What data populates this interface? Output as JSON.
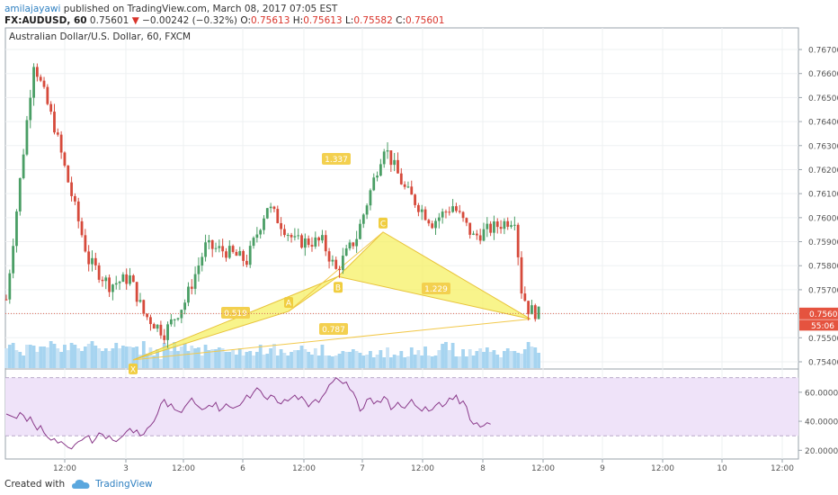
{
  "header": {
    "author": "amilajayawi",
    "published_text": "published on TradingView.com, March 08, 2017 07:05 EST",
    "symbol": "FX:AUDUSD, 60",
    "last_price": "0.75601",
    "change_arrow": "▼",
    "change": "−0.00242 (−0.32%)",
    "o_label": "O:",
    "o_value": "0.75613",
    "h_label": "H:",
    "h_value": "0.75613",
    "l_label": "L:",
    "l_value": "0.75582",
    "c_label": "C:",
    "c_value": "0.75601"
  },
  "footer": {
    "created_with": "Created with",
    "brand": "TradingView"
  },
  "chart_data": {
    "type": "candlestick",
    "title": "Australian Dollar/U.S. Dollar, 60, FXCM",
    "price_axis": {
      "ticks": [
        "0.76700",
        "0.76600",
        "0.76500",
        "0.76400",
        "0.76300",
        "0.76200",
        "0.76100",
        "0.76000",
        "0.75900",
        "0.75800",
        "0.75700",
        "0.75600",
        "0.75500",
        "0.75400"
      ],
      "ylim": [
        0.7537,
        0.7679
      ]
    },
    "current_price_label": "0.75601",
    "countdown_label": "55:06",
    "time_axis": {
      "labels": [
        "12:00",
        "3",
        "12:00",
        "6",
        "12:00",
        "7",
        "12:00",
        "8",
        "12:00",
        "9",
        "12:00",
        "10",
        "12:00"
      ]
    },
    "harmonic_pattern": {
      "points": [
        {
          "label": "X",
          "price": 0.75408
        },
        {
          "label": "A",
          "price": 0.7561
        },
        {
          "label": "B",
          "price": 0.75755
        },
        {
          "label": "C",
          "price": 0.7594
        }
      ],
      "end_price": 0.75578,
      "ratios": [
        "1.337",
        "0.519",
        "1.229",
        "0.787"
      ]
    },
    "rsi": {
      "ticks": [
        "60.0000",
        "40.0000",
        "20.0000"
      ],
      "overbought": 70,
      "oversold": 30,
      "ylim": [
        14,
        76
      ],
      "values": [
        45,
        44,
        43,
        42,
        46,
        44,
        40,
        43,
        38,
        34,
        37,
        32,
        29,
        27,
        28,
        25,
        26,
        24,
        22,
        21,
        24,
        26,
        27,
        29,
        30,
        25,
        28,
        32,
        31,
        28,
        30,
        27,
        26,
        28,
        30,
        33,
        35,
        32,
        34,
        30,
        31,
        35,
        37,
        40,
        45,
        52,
        55,
        50,
        52,
        48,
        47,
        46,
        50,
        53,
        56,
        52,
        50,
        48,
        49,
        51,
        50,
        53,
        47,
        49,
        52,
        50,
        49,
        50,
        51,
        54,
        58,
        56,
        60,
        63,
        61,
        57,
        55,
        58,
        57,
        53,
        52,
        55,
        54,
        56,
        58,
        55,
        57,
        54,
        50,
        53,
        55,
        53,
        57,
        60,
        65,
        67,
        70,
        68,
        66,
        67,
        62,
        60,
        55,
        47,
        49,
        55,
        56,
        52,
        54,
        53,
        57,
        55,
        48,
        50,
        53,
        50,
        49,
        52,
        55,
        51,
        49,
        47,
        50,
        47,
        48,
        51,
        53,
        50,
        52,
        56,
        55,
        58,
        52,
        54,
        50,
        41,
        38,
        39,
        36,
        37,
        39,
        38
      ]
    },
    "volume": {
      "values": [
        22,
        26,
        28,
        20,
        18,
        14,
        26,
        26,
        25,
        18,
        24,
        24,
        23,
        30,
        27,
        22,
        18,
        26,
        20,
        28,
        26,
        22,
        19,
        24,
        27,
        30,
        25,
        22,
        19,
        22,
        19,
        22,
        28,
        22,
        25,
        24,
        24,
        23,
        24,
        15,
        30,
        16,
        23,
        14,
        21,
        10,
        28,
        24,
        19,
        29,
        19,
        24,
        27,
        19,
        25,
        22,
        23,
        14,
        26,
        20,
        21,
        21,
        23,
        22,
        18,
        18,
        20,
        15,
        22,
        14,
        18,
        19,
        14,
        18,
        26,
        15,
        16,
        22,
        27,
        14,
        21,
        17,
        14,
        18,
        20,
        20,
        25,
        21,
        18,
        15,
        22,
        14,
        26,
        14,
        14,
        13,
        14,
        16,
        19,
        18,
        18,
        21,
        19,
        17,
        14,
        15,
        19,
        12,
        15,
        20,
        12,
        23,
        12,
        15,
        14,
        19,
        12,
        13,
        23,
        15,
        20,
        14,
        24,
        14,
        13,
        14,
        20,
        27,
        29,
        20,
        28,
        13,
        13,
        21,
        13,
        21,
        14,
        19,
        22,
        18,
        23,
        18,
        20,
        15,
        12,
        19,
        22,
        19,
        19,
        17,
        16,
        21,
        29,
        24,
        23,
        17
      ]
    }
  }
}
